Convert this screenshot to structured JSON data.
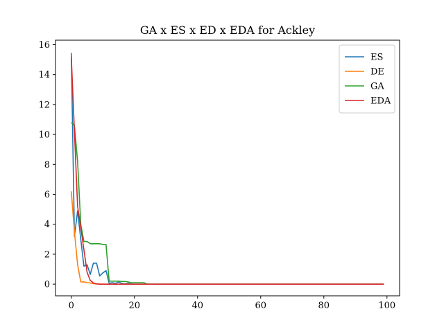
{
  "chart_data": {
    "type": "line",
    "title": "GA x ES x ED x EDA for Ackley",
    "xlabel": "",
    "ylabel": "",
    "xlim": [
      -5,
      104
    ],
    "ylim": [
      -0.78,
      16.3
    ],
    "xticks": [
      0,
      20,
      40,
      60,
      80,
      100
    ],
    "yticks": [
      0,
      2,
      4,
      6,
      8,
      10,
      12,
      14,
      16
    ],
    "legend_position": "top-right",
    "grid": false,
    "series": [
      {
        "name": "ES",
        "color": "#1f77b4",
        "points": [
          [
            0,
            15.45
          ],
          [
            1,
            3.2
          ],
          [
            2,
            4.9
          ],
          [
            3,
            3.0
          ],
          [
            4,
            1.2
          ],
          [
            5,
            1.3
          ],
          [
            6,
            0.65
          ],
          [
            7,
            1.4
          ],
          [
            8,
            1.4
          ],
          [
            9,
            0.55
          ],
          [
            10,
            0.75
          ],
          [
            11,
            0.9
          ],
          [
            12,
            0.05
          ],
          [
            13,
            0.1
          ],
          [
            14,
            0.05
          ],
          [
            15,
            0.15
          ],
          [
            16,
            0.05
          ],
          [
            17,
            0.02
          ],
          [
            18,
            0.05
          ],
          [
            19,
            0.01
          ],
          [
            20,
            0.0
          ],
          [
            99,
            0.0
          ]
        ]
      },
      {
        "name": "DE",
        "color": "#ff7f0e",
        "points": [
          [
            0,
            6.2
          ],
          [
            1,
            3.5
          ],
          [
            2,
            1.3
          ],
          [
            3,
            0.15
          ],
          [
            4,
            0.15
          ],
          [
            5,
            0.1
          ],
          [
            6,
            0.08
          ],
          [
            7,
            0.03
          ],
          [
            8,
            0.01
          ],
          [
            10,
            0.0
          ],
          [
            99,
            0.0
          ]
        ]
      },
      {
        "name": "GA",
        "color": "#2ca02c",
        "points": [
          [
            0,
            10.8
          ],
          [
            1,
            10.6
          ],
          [
            2,
            8.2
          ],
          [
            3,
            4.0
          ],
          [
            4,
            2.85
          ],
          [
            5,
            2.85
          ],
          [
            6,
            2.7
          ],
          [
            7,
            2.7
          ],
          [
            8,
            2.7
          ],
          [
            9,
            2.7
          ],
          [
            10,
            2.65
          ],
          [
            11,
            2.65
          ],
          [
            12,
            0.2
          ],
          [
            13,
            0.2
          ],
          [
            14,
            0.2
          ],
          [
            15,
            0.2
          ],
          [
            16,
            0.18
          ],
          [
            17,
            0.18
          ],
          [
            18,
            0.15
          ],
          [
            19,
            0.1
          ],
          [
            20,
            0.1
          ],
          [
            21,
            0.1
          ],
          [
            22,
            0.1
          ],
          [
            23,
            0.1
          ],
          [
            24,
            0.0
          ],
          [
            99,
            0.0
          ]
        ]
      },
      {
        "name": "EDA",
        "color": "#d62728",
        "points": [
          [
            0,
            15.2
          ],
          [
            1,
            10.2
          ],
          [
            2,
            5.2
          ],
          [
            3,
            3.8
          ],
          [
            4,
            2.3
          ],
          [
            5,
            0.8
          ],
          [
            6,
            0.25
          ],
          [
            7,
            0.08
          ],
          [
            8,
            0.02
          ],
          [
            9,
            0.0
          ],
          [
            99,
            0.0
          ]
        ]
      }
    ]
  }
}
